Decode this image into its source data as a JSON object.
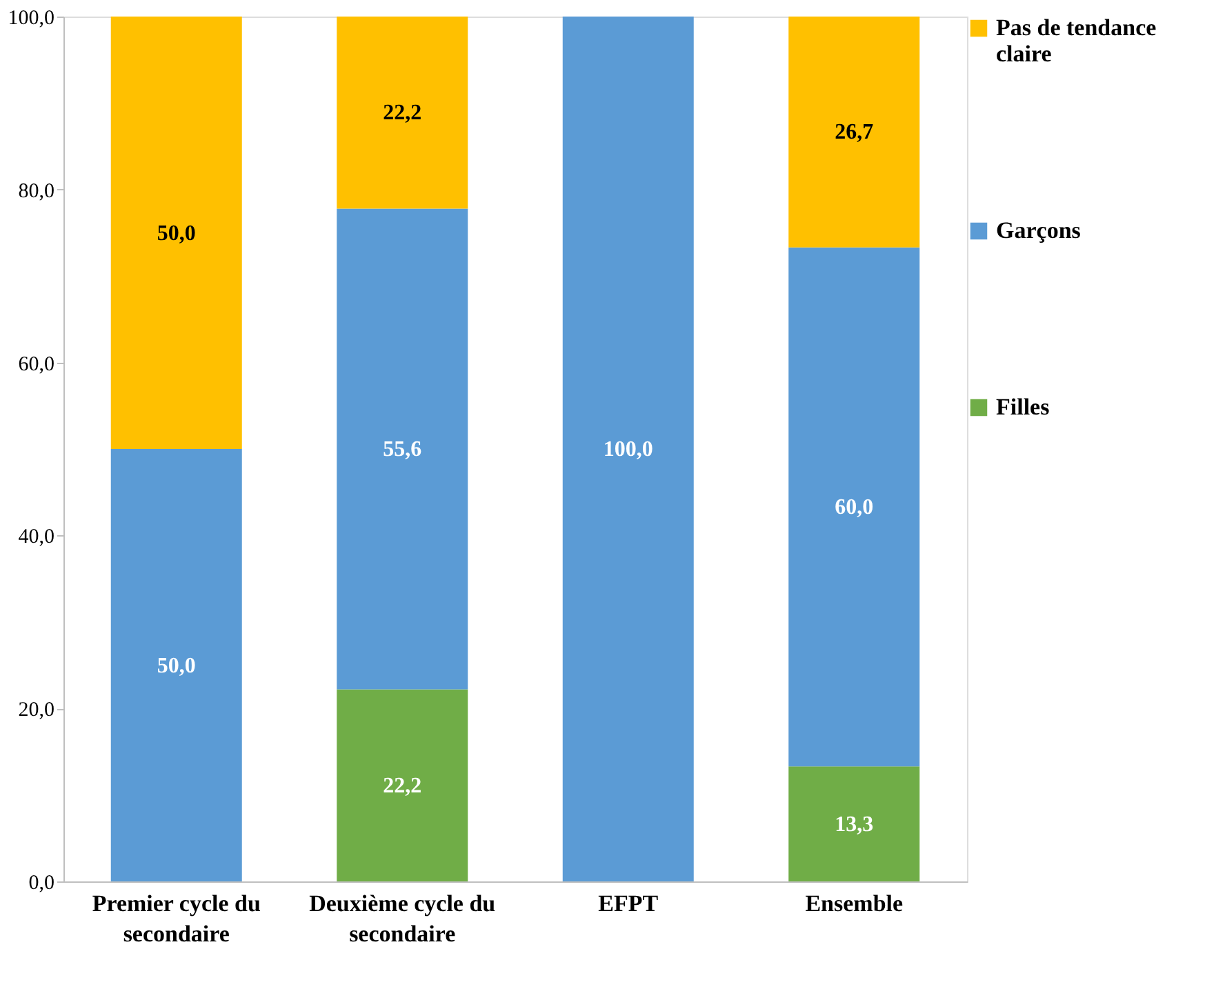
{
  "chart_data": {
    "type": "bar",
    "stacked": true,
    "categories": [
      "Premier cycle du secondaire",
      "Deuxième cycle du secondaire",
      "EFPT",
      "Ensemble"
    ],
    "series": [
      {
        "name": "Filles",
        "color": "#70ad47",
        "values": [
          null,
          22.2,
          null,
          13.3
        ],
        "value_labels": [
          null,
          "22,2",
          null,
          "13,3"
        ]
      },
      {
        "name": "Garçons",
        "color": "#5b9bd5",
        "values": [
          50.0,
          55.6,
          100.0,
          60.0
        ],
        "value_labels": [
          "50,0",
          "55,6",
          "100,0",
          "60,0"
        ]
      },
      {
        "name": "Pas de tendance claire",
        "color": "#ffc000",
        "values": [
          50.0,
          22.2,
          null,
          26.7
        ],
        "value_labels": [
          "50,0",
          "22,2",
          null,
          "26,7"
        ]
      }
    ],
    "ylim": [
      0,
      100
    ],
    "yticks": [
      {
        "value": 0,
        "label": "0,0"
      },
      {
        "value": 20,
        "label": "20,0"
      },
      {
        "value": 40,
        "label": "40,0"
      },
      {
        "value": 60,
        "label": "60,0"
      },
      {
        "value": 80,
        "label": "80,0"
      },
      {
        "value": 100,
        "label": "100,0"
      }
    ],
    "legend": "right",
    "grid": false
  }
}
